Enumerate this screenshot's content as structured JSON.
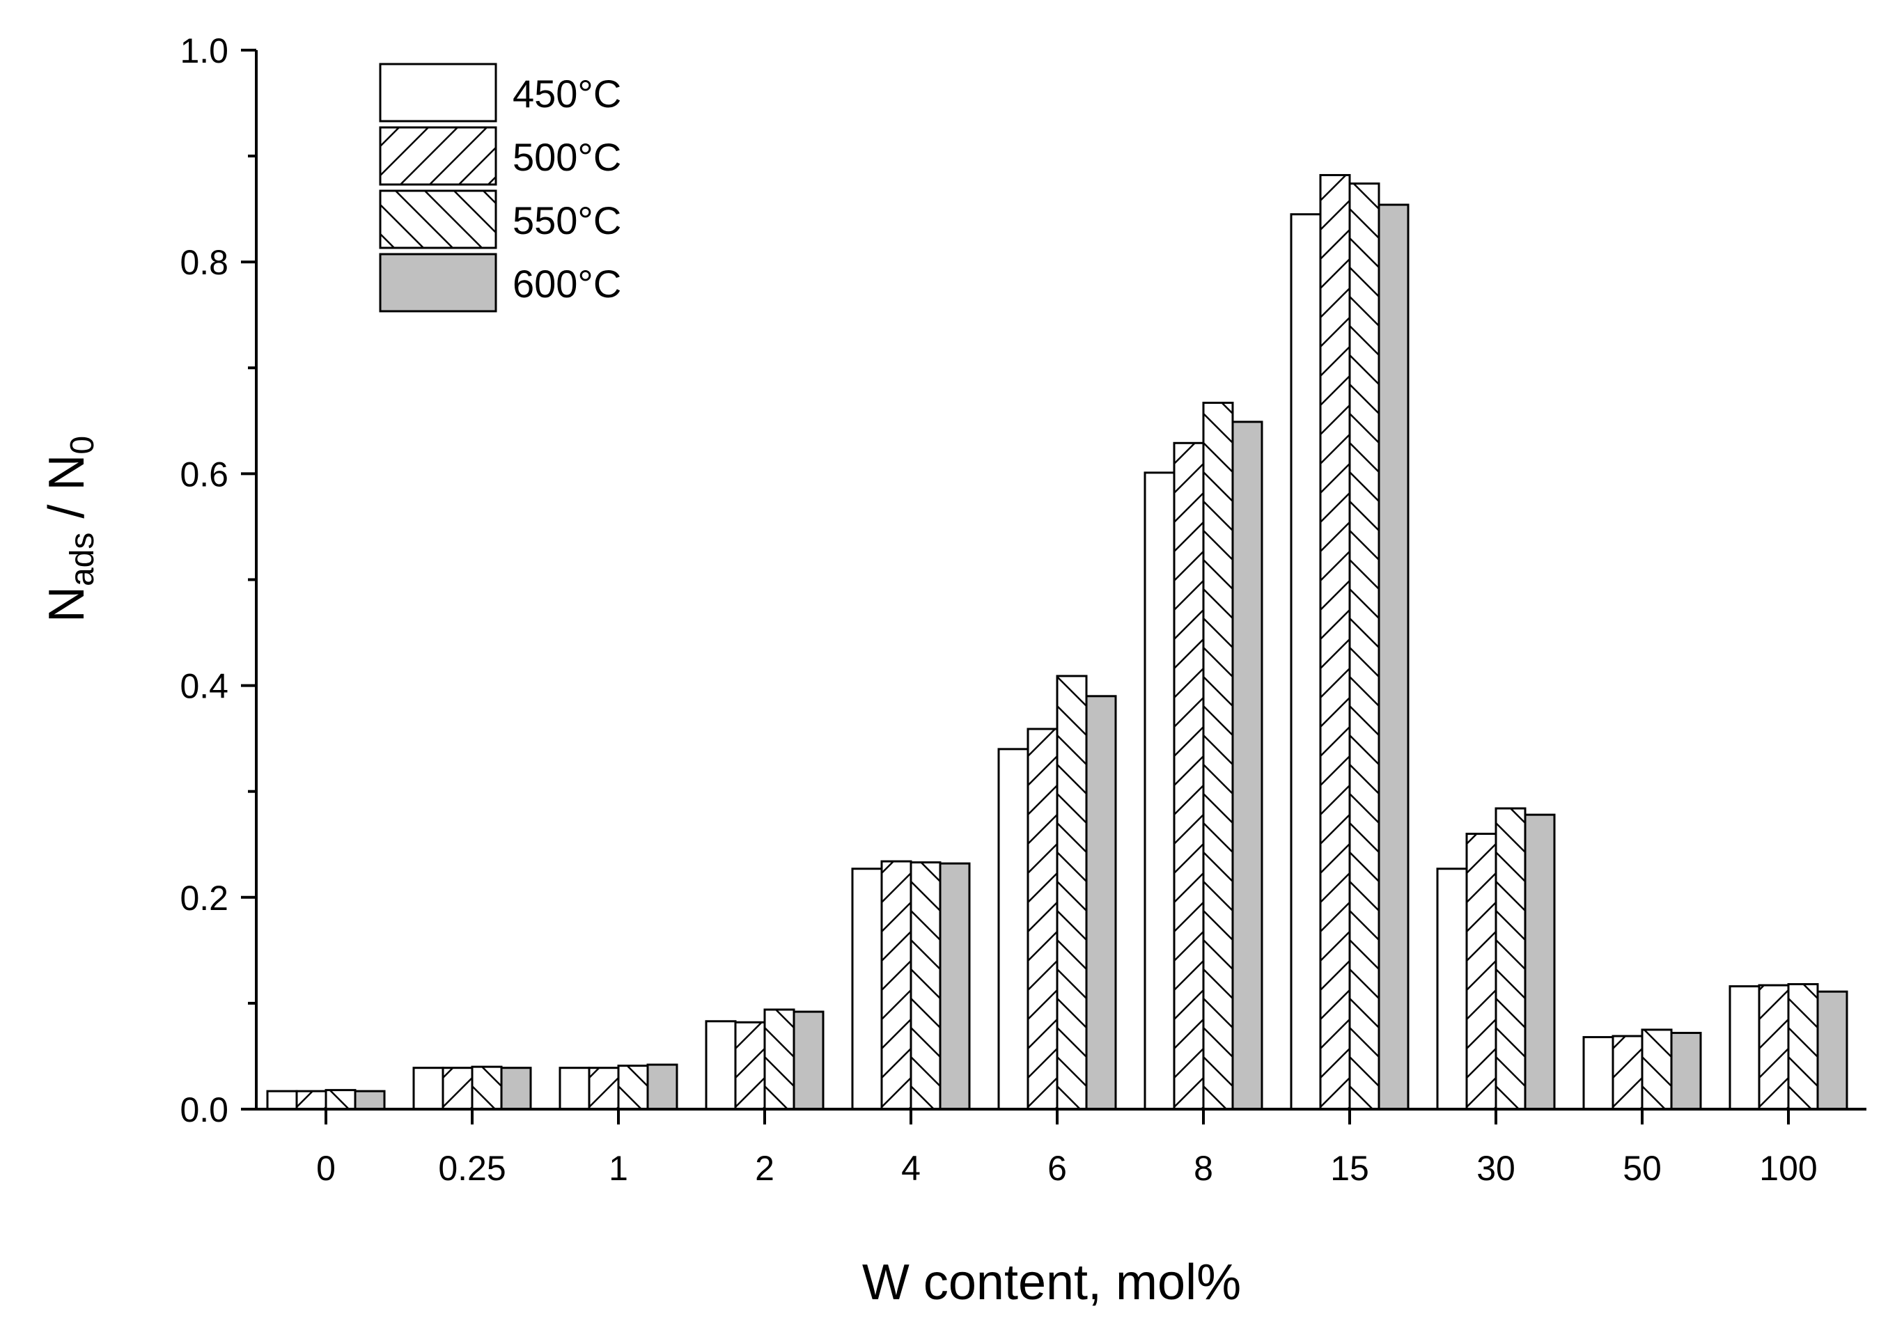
{
  "chart_data": {
    "type": "bar",
    "xlabel": "W content, mol%",
    "ylabel": {
      "main": "N",
      "sub1": "ads",
      "sep": " / N",
      "sub2": "0"
    },
    "categories": [
      "0",
      "0.25",
      "1",
      "2",
      "4",
      "6",
      "8",
      "15",
      "30",
      "50",
      "100"
    ],
    "ylim": [
      0,
      1.0
    ],
    "yticks": [
      0.0,
      0.2,
      0.4,
      0.6,
      0.8,
      1.0
    ],
    "ytick_labels": [
      "0.0",
      "0.2",
      "0.4",
      "0.6",
      "0.8",
      "1.0"
    ],
    "grid": false,
    "legend_position": "top-left",
    "series": [
      {
        "name": "450°C",
        "pattern": "none",
        "color": "#ffffff",
        "values": [
          0.017,
          0.039,
          0.039,
          0.083,
          0.227,
          0.34,
          0.601,
          0.845,
          0.227,
          0.068,
          0.116
        ]
      },
      {
        "name": "500°C",
        "pattern": "forward-hatch",
        "color": "#ffffff",
        "values": [
          0.017,
          0.039,
          0.039,
          0.082,
          0.234,
          0.359,
          0.629,
          0.882,
          0.26,
          0.069,
          0.117
        ]
      },
      {
        "name": "550°C",
        "pattern": "back-hatch",
        "color": "#ffffff",
        "values": [
          0.018,
          0.04,
          0.041,
          0.094,
          0.233,
          0.409,
          0.667,
          0.874,
          0.284,
          0.075,
          0.118
        ]
      },
      {
        "name": "600°C",
        "pattern": "solid",
        "color": "#c0c0c0",
        "values": [
          0.017,
          0.039,
          0.042,
          0.092,
          0.232,
          0.39,
          0.649,
          0.854,
          0.278,
          0.072,
          0.111
        ]
      }
    ]
  }
}
